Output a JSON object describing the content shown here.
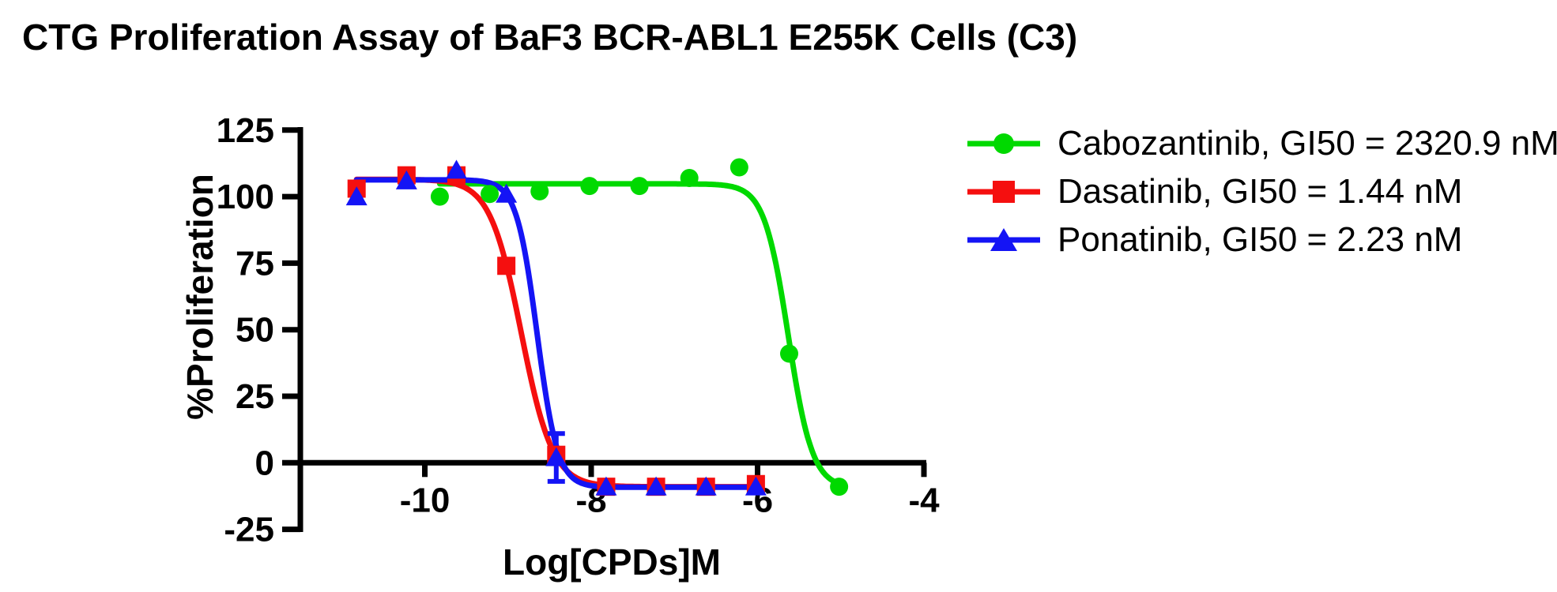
{
  "title": "CTG Proliferation Assay of BaF3 BCR-ABL1 E255K Cells (C3)",
  "legend": [
    {
      "label": "Cabozantinib, GI50 = 2320.9 nM",
      "color": "#00d900",
      "marker": "circle"
    },
    {
      "label": "Dasatinib, GI50 = 1.44 nM",
      "color": "#f50f0f",
      "marker": "square"
    },
    {
      "label": "Ponatinib, GI50 = 2.23 nM",
      "color": "#1414f5",
      "marker": "triangle"
    }
  ],
  "chart_data": {
    "type": "scatter",
    "subtype": "dose-response sigmoid fit",
    "title": "CTG Proliferation Assay of BaF3 BCR-ABL1 E255K Cells (C3)",
    "xlabel": "Log[CPDs]M",
    "ylabel": "%Proliferation",
    "x_ticks": [
      -10,
      -8,
      -6,
      -4
    ],
    "y_ticks": [
      125,
      100,
      75,
      50,
      25,
      0,
      -25
    ],
    "x_range": [
      -11.5,
      -4
    ],
    "y_range": [
      -25,
      125
    ],
    "grid": false,
    "legend_position": "right",
    "series": [
      {
        "name": "Cabozantinib",
        "gi50_nM": 2320.9,
        "color": "#00d900",
        "marker": "circle",
        "x": [
          -9.82,
          -9.22,
          -8.62,
          -8.02,
          -7.42,
          -6.82,
          -6.22,
          -5.62,
          -5.02
        ],
        "y": [
          100,
          101,
          102,
          104,
          104,
          107,
          111,
          41,
          -9
        ],
        "fit": {
          "top": 104.8,
          "bottom": -9.5,
          "logIC50": -5.63,
          "hill": 3.0
        }
      },
      {
        "name": "Dasatinib",
        "gi50_nM": 1.44,
        "color": "#f50f0f",
        "marker": "square",
        "x": [
          -10.82,
          -10.22,
          -9.62,
          -9.02,
          -8.42,
          -7.82,
          -7.22,
          -6.62,
          -6.02
        ],
        "y": [
          103,
          108,
          108,
          74,
          3,
          -9,
          -9,
          -9,
          -8
        ],
        "fit": {
          "top": 106.5,
          "bottom": -9.0,
          "logIC50": -8.84,
          "hill": 2.3
        }
      },
      {
        "name": "Ponatinib",
        "gi50_nM": 2.23,
        "color": "#1414f5",
        "marker": "triangle",
        "x": [
          -10.82,
          -10.22,
          -9.62,
          -9.02,
          -8.42,
          -7.82,
          -7.22,
          -6.62,
          -6.02
        ],
        "y": [
          100,
          106,
          110,
          101,
          2,
          -9,
          -9,
          -9,
          -9
        ],
        "error_bars": [
          {
            "x": -8.42,
            "y": 2,
            "plus": 9,
            "minus": 9
          }
        ],
        "fit": {
          "top": 106.3,
          "bottom": -9.2,
          "logIC50": -8.65,
          "hill": 3.5
        }
      }
    ]
  }
}
